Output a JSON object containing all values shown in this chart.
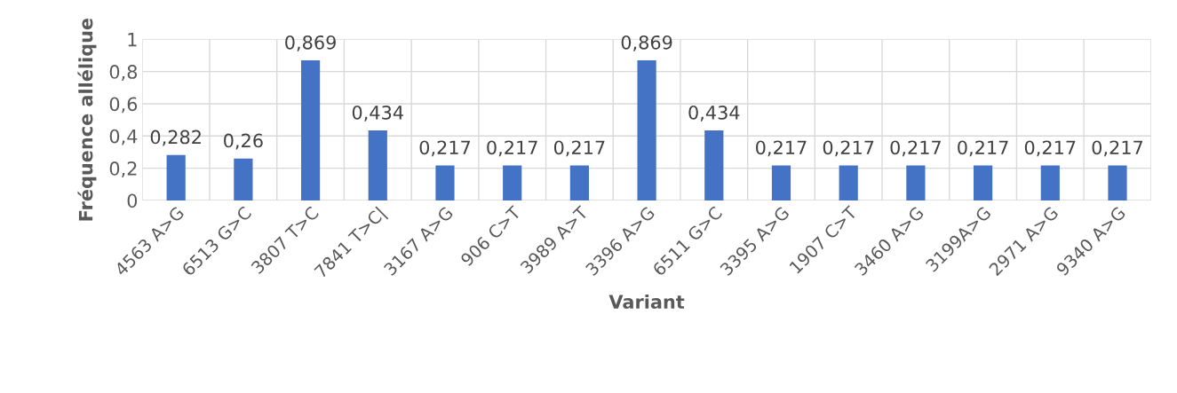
{
  "chart_data": {
    "type": "bar",
    "xlabel": "Variant",
    "ylabel": "Fréquence allélique",
    "categories": [
      "4563 A>G",
      "6513 G>C",
      "3807 T>C",
      "7841 T>C|",
      "3167 A>G",
      "906 C>T",
      "3989 A>T",
      "3396 A>G",
      "6511 G>C",
      "3395 A>G",
      "1907 C>T",
      "3460 A>G",
      "3199A>G",
      "2971 A>G",
      "9340 A>G"
    ],
    "values": [
      0.282,
      0.26,
      0.869,
      0.434,
      0.217,
      0.217,
      0.217,
      0.869,
      0.434,
      0.217,
      0.217,
      0.217,
      0.217,
      0.217,
      0.217
    ],
    "value_labels": [
      "0,282",
      "0,26",
      "0,869",
      "0,434",
      "0,217",
      "0,217",
      "0,217",
      "0,869",
      "0,434",
      "0,217",
      "0,217",
      "0,217",
      "0,217",
      "0,217",
      "0,217"
    ],
    "color": "#4472c4",
    "ylim": [
      0,
      1
    ],
    "yticks": [
      {
        "value": 0,
        "label": "0"
      },
      {
        "value": 0.2,
        "label": "0,2"
      },
      {
        "value": 0.4,
        "label": "0,4"
      },
      {
        "value": 0.6,
        "label": "0,6"
      },
      {
        "value": 0.8,
        "label": "0,8"
      },
      {
        "value": 1,
        "label": "1"
      }
    ],
    "grid": true
  }
}
